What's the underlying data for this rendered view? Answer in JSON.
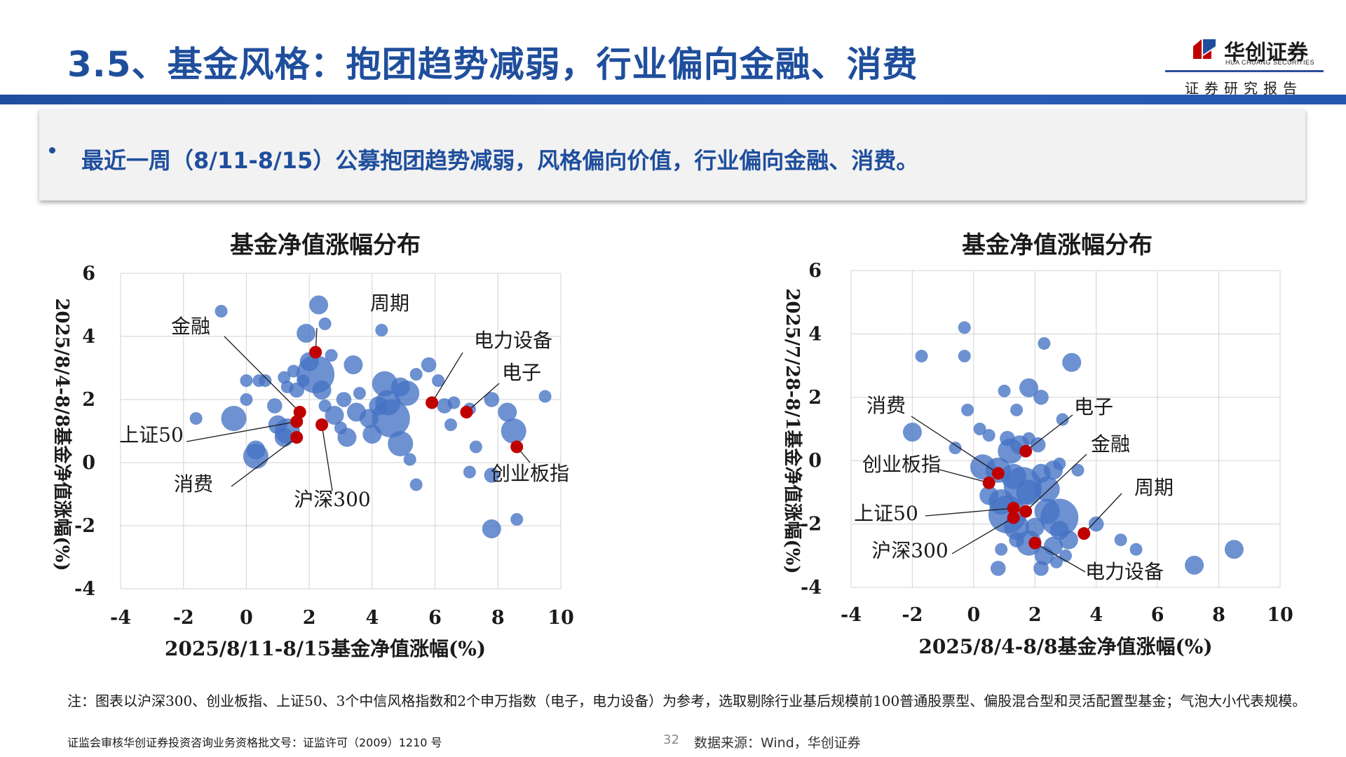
{
  "header": {
    "title": "3.5、基金风格：抱团趋势减弱，行业偏向金融、消费",
    "brand_name": "华创证券",
    "brand_en": "HUA CHUANG SECURITIES",
    "brand_sub": "证券研究报告"
  },
  "summary": {
    "text": "最近一周（8/11-8/15）公募抱团趋势减弱，风格偏向价值，行业偏向金融、消费。"
  },
  "colors": {
    "title_blue": "#1f4e9c",
    "fund_bubble": "#4472c4",
    "index_point": "#c00000"
  },
  "chart_data": [
    {
      "type": "scatter",
      "title": "基金净值涨幅分布",
      "xlabel": "2025/8/11-8/15基金净值涨幅(%)",
      "ylabel": "2025/8/4-8/8基金净值涨幅(%)",
      "xlim": [
        -4,
        10
      ],
      "ylim": [
        -4,
        6
      ],
      "xticks": [
        "-4",
        "-2",
        "0",
        "2",
        "4",
        "6",
        "8",
        "10"
      ],
      "yticks": [
        "-4",
        "-2",
        "0",
        "2",
        "4",
        "6"
      ],
      "grid": true,
      "series": [
        {
          "points": [
            [
              -0.8,
              4.8,
              1
            ],
            [
              2.3,
              5.0,
              1.5
            ],
            [
              2.5,
              4.4,
              1
            ],
            [
              1.9,
              4.1,
              1.5
            ],
            [
              4.3,
              4.2,
              1
            ],
            [
              -1.6,
              1.4,
              1
            ],
            [
              -0.4,
              1.4,
              2
            ],
            [
              0.0,
              2.6,
              1
            ],
            [
              0.0,
              2.0,
              1
            ],
            [
              0.4,
              2.6,
              1
            ],
            [
              0.6,
              2.6,
              1
            ],
            [
              0.9,
              1.8,
              1.2
            ],
            [
              1.2,
              2.7,
              1
            ],
            [
              1.3,
              2.4,
              1
            ],
            [
              1.5,
              2.9,
              1
            ],
            [
              1.6,
              2.3,
              1.2
            ],
            [
              1.8,
              2.6,
              1
            ],
            [
              2.0,
              3.2,
              1.5
            ],
            [
              2.2,
              2.8,
              3
            ],
            [
              2.4,
              2.3,
              1.5
            ],
            [
              2.7,
              3.4,
              1
            ],
            [
              2.5,
              1.8,
              1
            ],
            [
              2.8,
              1.5,
              1.5
            ],
            [
              3.1,
              2.0,
              1.2
            ],
            [
              3.4,
              3.1,
              1.5
            ],
            [
              3.6,
              2.2,
              1
            ],
            [
              3.9,
              1.4,
              1.5
            ],
            [
              4.2,
              1.8,
              1.5
            ],
            [
              4.5,
              1.9,
              2
            ],
            [
              4.4,
              2.5,
              2
            ],
            [
              4.6,
              1.4,
              3
            ],
            [
              4.9,
              2.4,
              1.5
            ],
            [
              5.1,
              2.2,
              2
            ],
            [
              5.4,
              2.8,
              1
            ],
            [
              5.8,
              3.1,
              1.2
            ],
            [
              6.1,
              2.6,
              1
            ],
            [
              6.3,
              1.8,
              1.2
            ],
            [
              6.6,
              1.9,
              1
            ],
            [
              6.5,
              1.2,
              1
            ],
            [
              7.1,
              1.7,
              1
            ],
            [
              7.8,
              2.0,
              1.2
            ],
            [
              8.3,
              1.6,
              1.5
            ],
            [
              8.5,
              1.0,
              2
            ],
            [
              9.5,
              2.1,
              1
            ],
            [
              7.3,
              0.5,
              1
            ],
            [
              7.1,
              -0.3,
              1
            ],
            [
              7.8,
              -0.4,
              1.2
            ],
            [
              5.2,
              0.1,
              1
            ],
            [
              4.9,
              0.6,
              2
            ],
            [
              5.4,
              -0.7,
              1
            ],
            [
              0.3,
              0.4,
              1.5
            ],
            [
              0.3,
              0.2,
              2
            ],
            [
              1.0,
              1.2,
              1.5
            ],
            [
              1.2,
              0.8,
              1.5
            ],
            [
              1.3,
              1.0,
              2
            ],
            [
              3.0,
              1.1,
              1
            ],
            [
              3.2,
              0.8,
              1.5
            ],
            [
              3.5,
              1.6,
              1.5
            ],
            [
              4.0,
              0.9,
              1.5
            ],
            [
              8.6,
              -1.8,
              1
            ],
            [
              7.8,
              -2.1,
              1.5
            ]
          ]
        },
        {
          "labels": [
            {
              "name": "周期",
              "x": 2.2,
              "y": 3.5
            },
            {
              "name": "电力设备",
              "x": 5.9,
              "y": 1.9
            },
            {
              "name": "电子",
              "x": 7.0,
              "y": 1.6
            },
            {
              "name": "金融",
              "x": 1.7,
              "y": 1.6
            },
            {
              "name": "上证50",
              "x": 1.6,
              "y": 1.3
            },
            {
              "name": "沪深300",
              "x": 2.4,
              "y": 1.2
            },
            {
              "name": "消费",
              "x": 1.6,
              "y": 0.8
            },
            {
              "name": "创业板指",
              "x": 8.6,
              "y": 0.5
            }
          ]
        }
      ]
    },
    {
      "type": "scatter",
      "title": "基金净值涨幅分布",
      "xlabel": "2025/8/4-8/8基金净值涨幅(%)",
      "ylabel": "2025/7/28-8/1基金净值涨幅(%)",
      "xlim": [
        -4,
        10
      ],
      "ylim": [
        -4,
        6
      ],
      "xticks": [
        "-4",
        "-2",
        "0",
        "2",
        "4",
        "6",
        "8",
        "10"
      ],
      "yticks": [
        "-4",
        "-2",
        "0",
        "2",
        "4",
        "6"
      ],
      "grid": true,
      "series": [
        {
          "points": [
            [
              -0.3,
              4.2,
              1
            ],
            [
              -1.7,
              3.3,
              1
            ],
            [
              -0.3,
              3.3,
              1
            ],
            [
              2.3,
              3.7,
              1
            ],
            [
              3.2,
              3.1,
              1.5
            ],
            [
              1.8,
              2.3,
              1.5
            ],
            [
              2.2,
              2.0,
              1.2
            ],
            [
              1.0,
              2.2,
              1
            ],
            [
              -0.2,
              1.6,
              1
            ],
            [
              1.4,
              1.6,
              1
            ],
            [
              2.9,
              1.3,
              1
            ],
            [
              -2.0,
              0.9,
              1.5
            ],
            [
              0.2,
              1.0,
              1
            ],
            [
              0.5,
              0.8,
              1
            ],
            [
              1.1,
              0.7,
              1.2
            ],
            [
              1.5,
              0.5,
              1.5
            ],
            [
              1.8,
              0.7,
              1
            ],
            [
              2.1,
              0.5,
              1.2
            ],
            [
              1.2,
              0.3,
              2
            ],
            [
              -0.6,
              0.4,
              1
            ],
            [
              0.3,
              -0.2,
              2
            ],
            [
              0.8,
              -0.3,
              2
            ],
            [
              1.3,
              -0.5,
              2
            ],
            [
              1.6,
              -0.8,
              3
            ],
            [
              1.8,
              -1.0,
              2
            ],
            [
              2.2,
              -0.4,
              1.5
            ],
            [
              2.4,
              -0.9,
              2
            ],
            [
              2.6,
              -0.3,
              1.5
            ],
            [
              2.8,
              -0.1,
              1
            ],
            [
              3.4,
              -0.3,
              1
            ],
            [
              0.5,
              -1.1,
              1.5
            ],
            [
              0.9,
              -1.3,
              2
            ],
            [
              1.1,
              -1.7,
              3
            ],
            [
              1.4,
              -2.1,
              2
            ],
            [
              1.8,
              -2.6,
              2
            ],
            [
              2.4,
              -1.6,
              2
            ],
            [
              2.8,
              -1.8,
              3
            ],
            [
              2.8,
              -2.2,
              1.5
            ],
            [
              3.1,
              -2.5,
              1.5
            ],
            [
              2.6,
              -2.7,
              1.5
            ],
            [
              2.3,
              -3.0,
              1.5
            ],
            [
              2.7,
              -3.2,
              1
            ],
            [
              3.0,
              -3.0,
              1
            ],
            [
              0.8,
              -3.4,
              1.2
            ],
            [
              2.2,
              -3.4,
              1.2
            ],
            [
              4.0,
              -2.0,
              1.2
            ],
            [
              4.8,
              -2.5,
              1
            ],
            [
              5.3,
              -2.8,
              1
            ],
            [
              7.2,
              -3.3,
              1.5
            ],
            [
              8.5,
              -2.8,
              1.5
            ],
            [
              1.4,
              -2.5,
              1.2
            ],
            [
              2.0,
              -2.1,
              1.5
            ],
            [
              0.9,
              -2.8,
              1
            ]
          ]
        },
        {
          "labels": [
            {
              "name": "电子",
              "x": 1.7,
              "y": 0.3
            },
            {
              "name": "金融",
              "x": 1.7,
              "y": -1.6
            },
            {
              "name": "消费",
              "x": 0.8,
              "y": -0.4
            },
            {
              "name": "创业板指",
              "x": 0.5,
              "y": -0.7
            },
            {
              "name": "周期",
              "x": 3.6,
              "y": -2.3
            },
            {
              "name": "上证50",
              "x": 1.3,
              "y": -1.5
            },
            {
              "name": "沪深300",
              "x": 1.3,
              "y": -1.8
            },
            {
              "name": "电力设备",
              "x": 2.0,
              "y": -2.6
            }
          ]
        }
      ]
    }
  ],
  "footnote": "注：图表以沪深300、创业板指、上证50、3个中信风格指数和2个申万指数（电子，电力设备）为参考，选取剔除行业基后规模前100普通股票型、偏股混合型和灵活配置型基金；气泡大小代表规模。",
  "license": "证监会审核华创证券投资咨询业务资格批文号：证监许可（2009）1210 号",
  "page_number": "32",
  "source": "数据来源：Wind，华创证券"
}
